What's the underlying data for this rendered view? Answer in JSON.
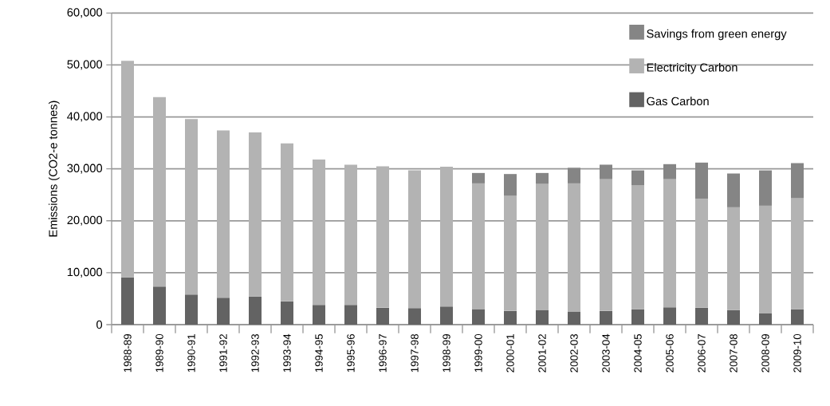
{
  "chart_data": {
    "type": "bar",
    "stacked": true,
    "ylabel": "Emissions (CO2-e tonnes)",
    "categories": [
      "1988-89",
      "1989-90",
      "1990-91",
      "1991-92",
      "1992-93",
      "1993-94",
      "1994-95",
      "1995-96",
      "1996-97",
      "1997-98",
      "1998-99",
      "1999-00",
      "2000-01",
      "2001-02",
      "2002-03",
      "2003-04",
      "2004-05",
      "2005-06",
      "2006-07",
      "2007-08",
      "2008-09",
      "2009-10"
    ],
    "series": [
      {
        "name": "Gas Carbon",
        "color": "#636363",
        "values": [
          9100,
          7350,
          5800,
          5200,
          5400,
          4500,
          3800,
          3800,
          3300,
          3200,
          3500,
          3000,
          2650,
          2750,
          2550,
          2650,
          2950,
          3350,
          3250,
          2800,
          2150,
          2950
        ]
      },
      {
        "name": "Electricity Carbon",
        "color": "#b3b3b3",
        "values": [
          41700,
          36450,
          33800,
          32200,
          31600,
          30400,
          28000,
          27000,
          27200,
          26500,
          26900,
          24200,
          22150,
          24350,
          24650,
          25350,
          23850,
          24650,
          20950,
          19800,
          20750,
          21450
        ]
      },
      {
        "name": "Savings from green energy",
        "color": "#858585",
        "values": [
          null,
          null,
          null,
          null,
          null,
          null,
          null,
          null,
          null,
          null,
          null,
          2000,
          4200,
          2100,
          3000,
          2800,
          2900,
          2900,
          7000,
          6500,
          6800,
          6700
        ]
      }
    ],
    "ylim": [
      0,
      60000
    ],
    "yticks": [
      0,
      {
        "value": 10000,
        "label": "10,000"
      },
      {
        "value": 20000,
        "label": "20,000"
      },
      {
        "value": 30000,
        "label": "30,000"
      },
      {
        "value": 40000,
        "label": "40,000"
      },
      {
        "value": 50000,
        "label": "50,000"
      },
      {
        "value": 60000,
        "label": "60,000"
      }
    ],
    "grid": "y",
    "legend": "top right"
  }
}
